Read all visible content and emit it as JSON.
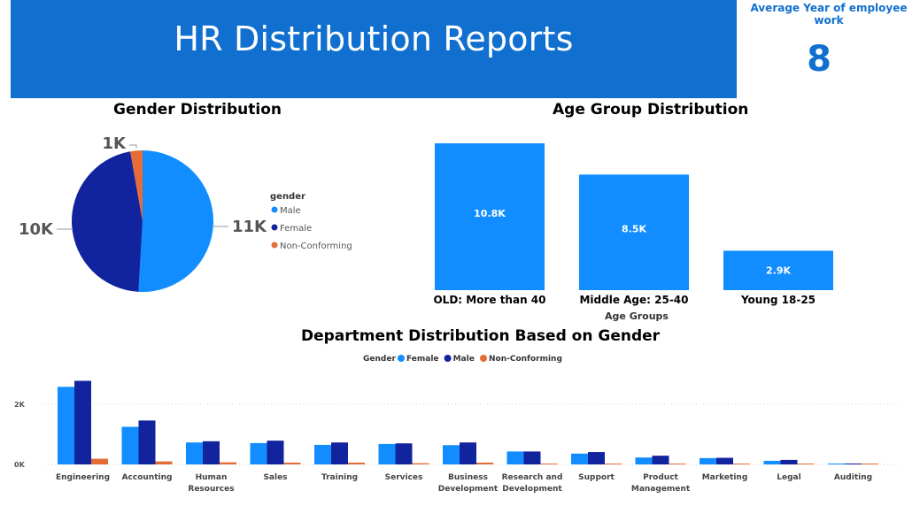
{
  "header": {
    "title": "HR Distribution Reports",
    "kpi_label": "Average Year of employee work",
    "kpi_value": "8"
  },
  "colors": {
    "banner": "#1170cf",
    "female": "#118dff",
    "male": "#12239e",
    "non_conforming": "#e66c37",
    "age_bar": "#118dff"
  },
  "chart_data": [
    {
      "type": "pie",
      "title": "Gender Distribution",
      "legend_title": "gender",
      "legend_position": "right",
      "slices": [
        {
          "name": "Male",
          "value": 11,
          "label": "11K",
          "color": "#118dff"
        },
        {
          "name": "Female",
          "value": 10,
          "label": "10K",
          "color": "#12239e"
        },
        {
          "name": "Non-Conforming",
          "value": 0.6,
          "label": "1K",
          "color": "#e66c37"
        }
      ],
      "legend": [
        "Male",
        "Female",
        "Non-Conforming"
      ]
    },
    {
      "type": "bar",
      "title": "Age Group Distribution",
      "xlabel": "Age Groups",
      "categories": [
        "OLD: More than 40",
        "Middle Age: 25-40",
        "Young 18-25"
      ],
      "values": [
        10.8,
        8.5,
        2.9
      ],
      "data_labels": [
        "10.8K",
        "8.5K",
        "2.9K"
      ]
    },
    {
      "type": "bar",
      "title": "Department Distribution Based on Gender",
      "legend_title": "Gender",
      "legend_position": "top",
      "categories": [
        [
          "Engineering"
        ],
        [
          "Accounting"
        ],
        [
          "Human",
          "Resources"
        ],
        [
          "Sales"
        ],
        [
          "Training"
        ],
        [
          "Services"
        ],
        [
          "Business",
          "Development"
        ],
        [
          "Research and",
          "Development"
        ],
        [
          "Support"
        ],
        [
          "Product",
          "Management"
        ],
        [
          "Marketing"
        ],
        [
          "Legal"
        ],
        [
          "Auditing"
        ]
      ],
      "yticks": [
        {
          "value": 0,
          "label": "0K"
        },
        {
          "value": 2000,
          "label": "2K"
        }
      ],
      "ylim": [
        0,
        2800
      ],
      "series": [
        {
          "name": "Female",
          "color": "#118dff",
          "values": [
            2580,
            1250,
            730,
            710,
            650,
            680,
            640,
            430,
            360,
            230,
            210,
            120,
            30
          ]
        },
        {
          "name": "Male",
          "color": "#12239e",
          "values": [
            2780,
            1460,
            770,
            790,
            730,
            700,
            730,
            430,
            410,
            290,
            220,
            150,
            30
          ]
        },
        {
          "name": "Non-Conforming",
          "color": "#e66c37",
          "values": [
            190,
            100,
            70,
            60,
            60,
            40,
            60,
            30,
            20,
            30,
            10,
            10,
            5
          ]
        }
      ]
    }
  ]
}
